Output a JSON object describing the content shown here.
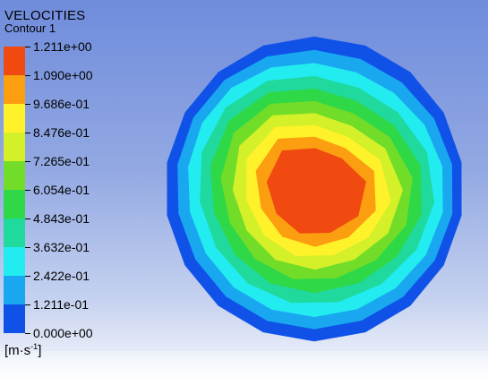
{
  "legend": {
    "title": "VELOCITIES",
    "subtitle": "Contour 1",
    "unit_base": "[m·s",
    "unit_exp": "-1",
    "unit_close": "]",
    "tick_labels": [
      "1.211e+00",
      "1.090e+00",
      "9.686e-01",
      "8.476e-01",
      "7.265e-01",
      "6.054e-01",
      "4.843e-01",
      "3.632e-01",
      "2.422e-01",
      "1.211e-01",
      "0.000e+00"
    ],
    "colors_top_to_bottom": [
      "#f04a10",
      "#fb9f10",
      "#fff22a",
      "#d4f029",
      "#71dd28",
      "#2fd846",
      "#1fd99d",
      "#22ecef",
      "#19a8f0",
      "#1052e8"
    ]
  },
  "contour_colors_outer_to_inner": [
    "#1052e8",
    "#19a8f0",
    "#22ecef",
    "#1fd99d",
    "#2fd846",
    "#71dd28",
    "#d4f029",
    "#fff22a",
    "#fb9f10",
    "#f04a10"
  ]
}
